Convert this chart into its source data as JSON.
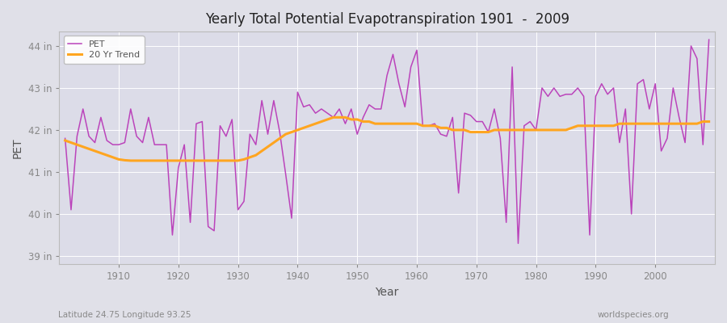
{
  "title": "Yearly Total Potential Evapotranspiration 1901  -  2009",
  "ylabel": "PET",
  "xlabel": "Year",
  "subtitle_left": "Latitude 24.75 Longitude 93.25",
  "subtitle_right": "worldspecies.org",
  "pet_color": "#BB44BB",
  "trend_color": "#FFA520",
  "background_color": "#E0E0E8",
  "years": [
    1901,
    1902,
    1903,
    1904,
    1905,
    1906,
    1907,
    1908,
    1909,
    1910,
    1911,
    1912,
    1913,
    1914,
    1915,
    1916,
    1917,
    1918,
    1919,
    1920,
    1921,
    1922,
    1923,
    1924,
    1925,
    1926,
    1927,
    1928,
    1929,
    1930,
    1931,
    1932,
    1933,
    1934,
    1935,
    1936,
    1937,
    1938,
    1939,
    1940,
    1941,
    1942,
    1943,
    1944,
    1945,
    1946,
    1947,
    1948,
    1949,
    1950,
    1951,
    1952,
    1953,
    1954,
    1955,
    1956,
    1957,
    1958,
    1959,
    1960,
    1961,
    1962,
    1963,
    1964,
    1965,
    1966,
    1967,
    1968,
    1969,
    1970,
    1971,
    1972,
    1973,
    1974,
    1975,
    1976,
    1977,
    1978,
    1979,
    1980,
    1981,
    1982,
    1983,
    1984,
    1985,
    1986,
    1987,
    1988,
    1989,
    1990,
    1991,
    1992,
    1993,
    1994,
    1995,
    1996,
    1997,
    1998,
    1999,
    2000,
    2001,
    2002,
    2003,
    2004,
    2005,
    2006,
    2007,
    2008,
    2009
  ],
  "pet_values": [
    41.8,
    40.1,
    41.85,
    42.5,
    41.85,
    41.7,
    42.3,
    41.75,
    41.65,
    41.65,
    41.7,
    42.5,
    41.85,
    41.7,
    42.3,
    41.65,
    41.65,
    41.65,
    39.5,
    41.1,
    41.65,
    39.8,
    42.15,
    42.2,
    39.7,
    39.6,
    42.1,
    41.85,
    42.25,
    40.1,
    40.3,
    41.9,
    41.65,
    42.7,
    41.9,
    42.7,
    41.95,
    40.95,
    39.9,
    42.9,
    42.55,
    42.6,
    42.4,
    42.5,
    42.4,
    42.3,
    42.5,
    42.15,
    42.5,
    41.9,
    42.3,
    42.6,
    42.5,
    42.5,
    43.3,
    43.8,
    43.1,
    42.55,
    43.5,
    43.9,
    42.1,
    42.1,
    42.15,
    41.9,
    41.85,
    42.3,
    40.5,
    42.4,
    42.35,
    42.2,
    42.2,
    41.95,
    42.5,
    41.8,
    39.8,
    43.5,
    39.3,
    42.1,
    42.2,
    42.0,
    43.0,
    42.8,
    43.0,
    42.8,
    42.85,
    42.85,
    43.0,
    42.8,
    39.5,
    42.8,
    43.1,
    42.85,
    43.0,
    41.7,
    42.5,
    40.0,
    43.1,
    43.2,
    42.5,
    43.1,
    41.5,
    41.8,
    43.0,
    42.3,
    41.7,
    44.0,
    43.7,
    41.65,
    44.15
  ],
  "trend_values": [
    41.75,
    41.7,
    41.65,
    41.6,
    41.55,
    41.5,
    41.45,
    41.4,
    41.35,
    41.3,
    41.28,
    41.27,
    41.27,
    41.27,
    41.27,
    41.27,
    41.27,
    41.27,
    41.27,
    41.27,
    41.27,
    41.27,
    41.27,
    41.27,
    41.27,
    41.27,
    41.27,
    41.27,
    41.27,
    41.27,
    41.3,
    41.35,
    41.4,
    41.5,
    41.6,
    41.7,
    41.8,
    41.9,
    41.95,
    42.0,
    42.05,
    42.1,
    42.15,
    42.2,
    42.25,
    42.3,
    42.3,
    42.3,
    42.25,
    42.25,
    42.2,
    42.2,
    42.15,
    42.15,
    42.15,
    42.15,
    42.15,
    42.15,
    42.15,
    42.15,
    42.1,
    42.1,
    42.1,
    42.05,
    42.05,
    42.0,
    42.0,
    42.0,
    41.95,
    41.95,
    41.95,
    41.95,
    42.0,
    42.0,
    42.0,
    42.0,
    42.0,
    42.0,
    42.0,
    42.0,
    42.0,
    42.0,
    42.0,
    42.0,
    42.0,
    42.05,
    42.1,
    42.1,
    42.1,
    42.1,
    42.1,
    42.1,
    42.1,
    42.15,
    42.15,
    42.15,
    42.15,
    42.15,
    42.15,
    42.15,
    42.15,
    42.15,
    42.15,
    42.15,
    42.15,
    42.15,
    42.15,
    42.2,
    42.2
  ],
  "ylim": [
    38.8,
    44.35
  ],
  "yticks": [
    39,
    40,
    41,
    42,
    43,
    44
  ],
  "ytick_labels": [
    "39 in",
    "40 in",
    "41 in",
    "42 in",
    "43 in",
    "44 in"
  ],
  "xticks": [
    1910,
    1920,
    1930,
    1940,
    1950,
    1960,
    1970,
    1980,
    1990,
    2000
  ],
  "legend_pet": "PET",
  "legend_trend": "20 Yr Trend",
  "plot_bg": "#DCDCE8",
  "grid_color": "#FFFFFF",
  "spine_color": "#BBBBBB",
  "tick_color": "#888888",
  "label_color": "#555555",
  "title_color": "#222222"
}
